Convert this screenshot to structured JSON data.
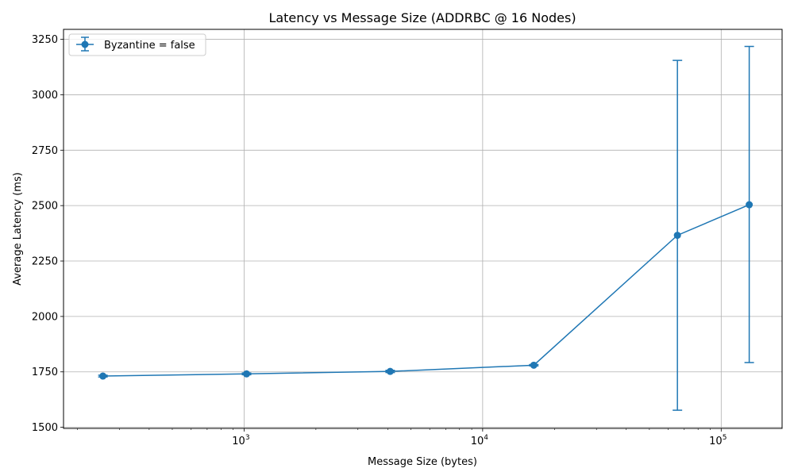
{
  "chart_data": {
    "type": "line",
    "title": "Latency vs Message Size (ADDRBC @ 16 Nodes)",
    "xlabel": "Message Size (bytes)",
    "ylabel": "Average Latency (ms)",
    "x_scale": "log",
    "xlim": [
      175,
      180000
    ],
    "ylim": [
      1495,
      3295
    ],
    "x_ticks": [
      {
        "value": 1000,
        "base": "10",
        "exp": "3"
      },
      {
        "value": 10000,
        "base": "10",
        "exp": "4"
      },
      {
        "value": 100000,
        "base": "10",
        "exp": "5"
      }
    ],
    "y_ticks": [
      1500,
      1750,
      2000,
      2250,
      2500,
      2750,
      3000,
      3250
    ],
    "grid": true,
    "legend_position": "top-left",
    "color": "#1f77b4",
    "series": [
      {
        "name": "Byzantine = false",
        "x": [
          256,
          1024,
          4096,
          16384,
          65536,
          131072
        ],
        "y": [
          1731,
          1741,
          1752,
          1780,
          2366,
          2504
        ],
        "err_low": [
          1727,
          1737,
          1747,
          1777,
          1577,
          1792
        ],
        "err_high": [
          1735,
          1745,
          1757,
          1783,
          3155,
          3218
        ]
      }
    ]
  }
}
